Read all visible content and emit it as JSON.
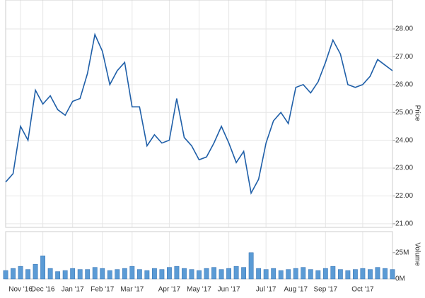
{
  "chart_data": [
    {
      "type": "line",
      "y_label": "Price",
      "color": "#1f5fa8",
      "values": [
        22.5,
        22.8,
        24.5,
        24.0,
        25.8,
        25.3,
        25.6,
        25.1,
        24.9,
        25.4,
        25.5,
        26.4,
        27.8,
        27.2,
        26.0,
        26.5,
        26.8,
        25.2,
        25.2,
        23.8,
        24.2,
        23.9,
        24.0,
        25.5,
        24.1,
        23.8,
        23.3,
        23.4,
        23.9,
        24.5,
        23.9,
        23.2,
        23.6,
        22.1,
        22.6,
        23.9,
        24.7,
        25.0,
        24.6,
        25.9,
        26.0,
        25.7,
        26.1,
        26.8,
        27.6,
        27.1,
        26.0,
        25.9,
        26.0,
        26.3,
        26.9,
        26.7,
        26.5
      ],
      "ylim": [
        20.87,
        29.04
      ],
      "yticks": [
        {
          "value": 21,
          "label": "21.00"
        },
        {
          "value": 22,
          "label": "22.00"
        },
        {
          "value": 23,
          "label": "23.00"
        },
        {
          "value": 24,
          "label": "24.00"
        },
        {
          "value": 25,
          "label": "25.00"
        },
        {
          "value": 26,
          "label": "26.00"
        },
        {
          "value": 27,
          "label": "27.00"
        },
        {
          "value": 28,
          "label": "28.00"
        }
      ],
      "grid": true
    },
    {
      "type": "bar",
      "y_label": "Volume",
      "color": "#5b9bd5",
      "categories": [
        null,
        null,
        "Nov '16",
        null,
        null,
        "Dec '16",
        null,
        null,
        null,
        "Jan '17",
        null,
        null,
        null,
        "Feb '17",
        null,
        null,
        null,
        "Mar '17",
        null,
        null,
        null,
        null,
        "Apr '17",
        null,
        null,
        null,
        "May '17",
        null,
        null,
        null,
        "Jun '17",
        null,
        null,
        null,
        null,
        "Jul '17",
        null,
        null,
        null,
        "Aug '17",
        null,
        null,
        null,
        "Sep '17",
        null,
        null,
        null,
        null,
        "Oct '17",
        null,
        null,
        null,
        null
      ],
      "values": [
        8,
        10,
        12,
        9,
        14,
        22,
        10,
        7,
        8,
        10,
        9,
        9,
        11,
        10,
        8,
        9,
        10,
        12,
        9,
        8,
        10,
        9,
        11,
        12,
        10,
        9,
        8,
        10,
        11,
        9,
        10,
        12,
        11,
        25,
        10,
        9,
        10,
        8,
        9,
        10,
        11,
        9,
        8,
        10,
        12,
        9,
        8,
        9,
        10,
        9,
        11,
        10,
        9
      ],
      "ylim": [
        0,
        45
      ],
      "yticks": [
        {
          "value": 0,
          "label": "0M"
        },
        {
          "value": 25,
          "label": "25M"
        }
      ]
    }
  ]
}
